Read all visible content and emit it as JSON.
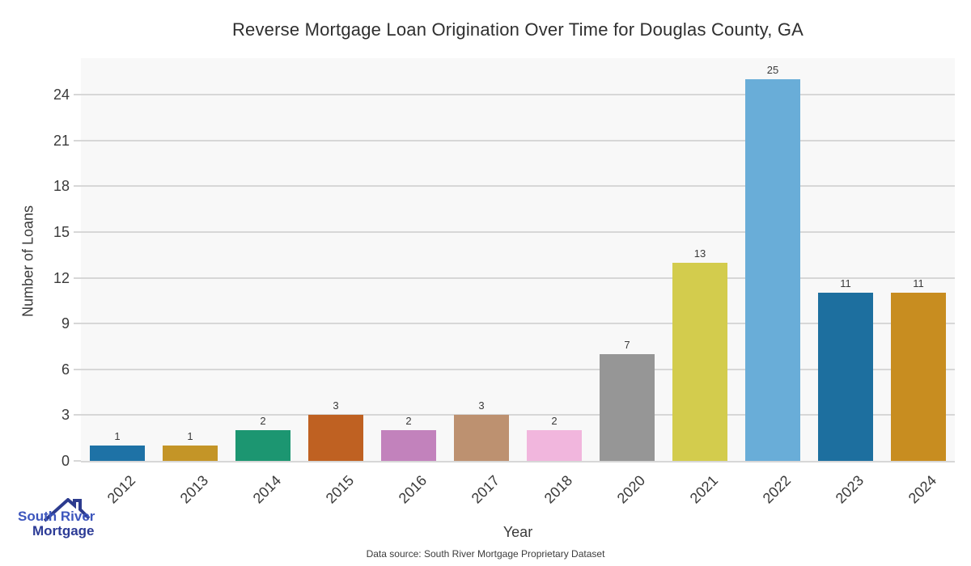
{
  "title": "Reverse Mortgage Loan Origination Over Time for Douglas County, GA",
  "chart_data": {
    "type": "bar",
    "title": "Reverse Mortgage Loan Origination Over Time for Douglas County, GA",
    "categories": [
      "2012",
      "2013",
      "2014",
      "2015",
      "2016",
      "2017",
      "2018",
      "2020",
      "2021",
      "2022",
      "2023",
      "2024"
    ],
    "values": [
      1,
      1,
      2,
      3,
      2,
      3,
      2,
      7,
      13,
      25,
      11,
      11
    ],
    "bar_colors": [
      "#1e72a6",
      "#c49527",
      "#1c9671",
      "#bf6122",
      "#c282bc",
      "#bd9170",
      "#f1b6dd",
      "#969696",
      "#d3cc4d",
      "#69add8",
      "#1d6f9f",
      "#c88d20"
    ],
    "xlabel": "Year",
    "ylabel": "Number of Loans",
    "yticks": [
      0,
      3,
      6,
      9,
      12,
      15,
      18,
      21,
      24
    ],
    "ylim": [
      0,
      26.4
    ],
    "grid": true,
    "legend_position": "none",
    "value_labels_shown": true
  },
  "colors": {
    "plot_bg": "#f8f8f8",
    "grid": "#d7d7d7",
    "axis_text": "#3a3a3a",
    "logo_roof": "#2c3b8e",
    "logo_text_primary": "#3d56bd",
    "logo_text_secondary": "#2c3b96"
  },
  "logo": {
    "line1": "South River",
    "line2": "Mortgage"
  },
  "footer": {
    "source_text": "Data source: South River Mortgage Proprietary Dataset"
  }
}
